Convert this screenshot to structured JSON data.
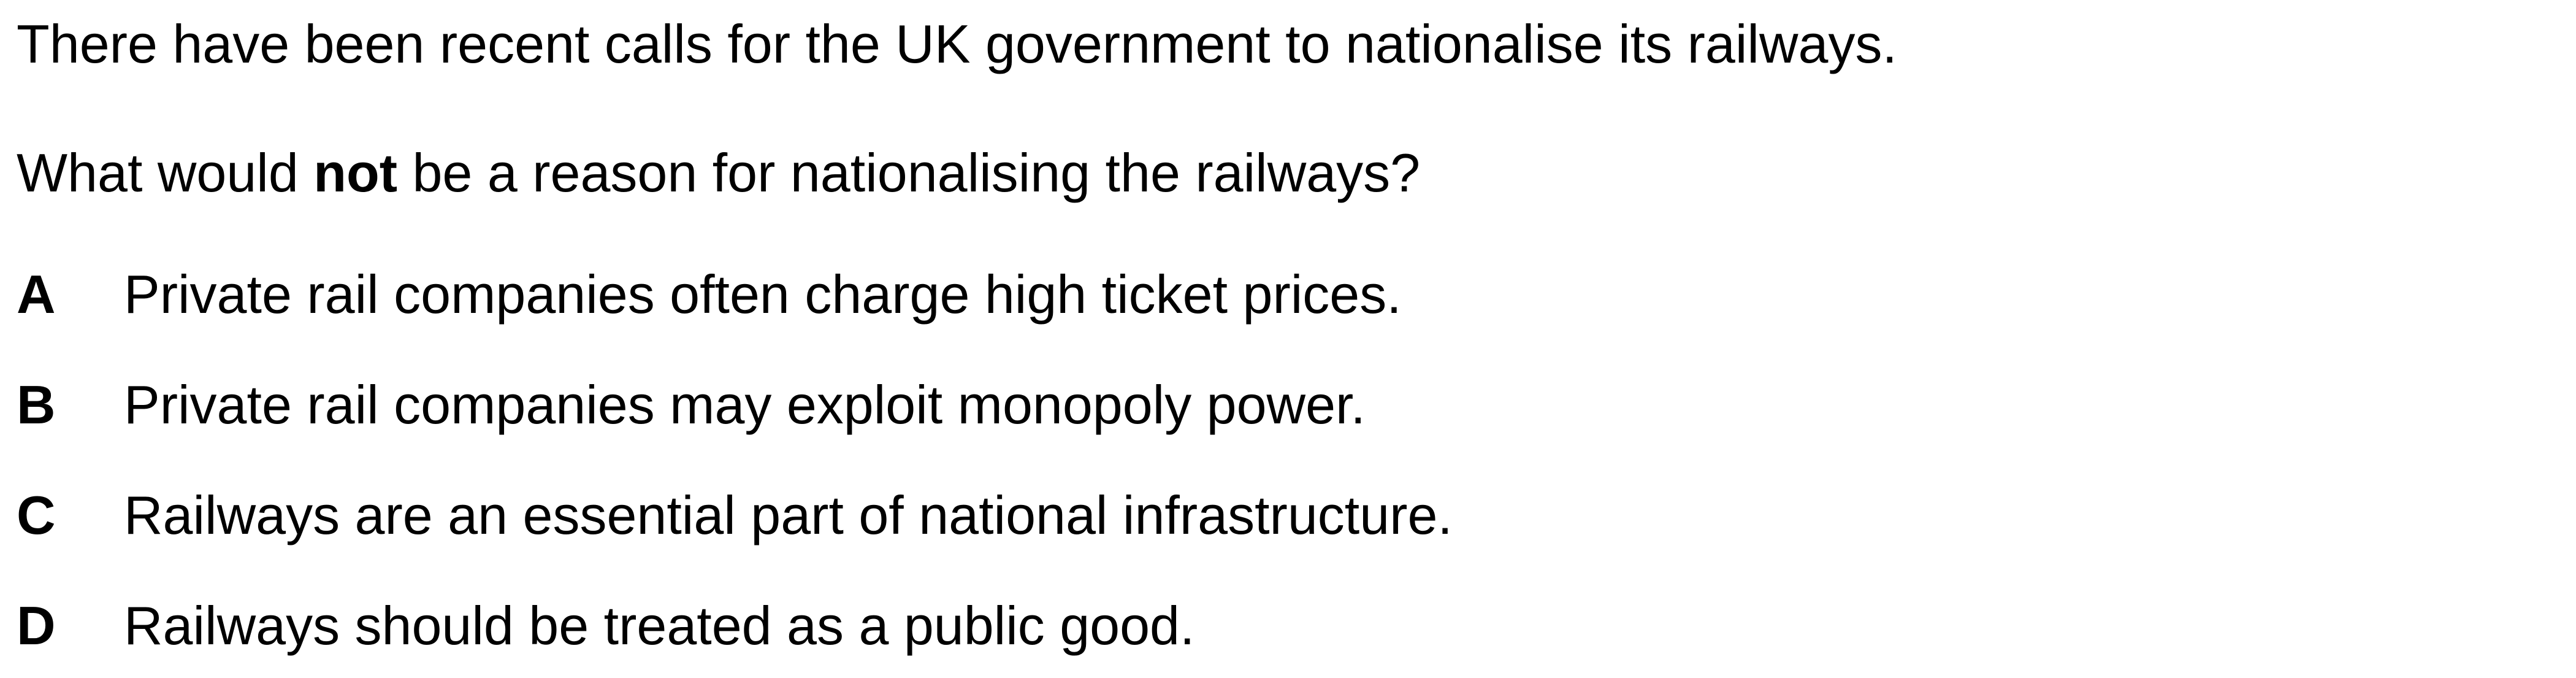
{
  "intro": "There have been recent calls for the UK government to nationalise its railways.",
  "question": {
    "before": "What would ",
    "emphasis": "not",
    "after": " be a reason for nationalising the railways?"
  },
  "options": [
    {
      "letter": "A",
      "text": "Private rail companies often charge high ticket prices."
    },
    {
      "letter": "B",
      "text": "Private rail companies may exploit monopoly power."
    },
    {
      "letter": "C",
      "text": "Railways are an essential part of national infrastructure."
    },
    {
      "letter": "D",
      "text": "Railways should be treated as a public good."
    }
  ]
}
